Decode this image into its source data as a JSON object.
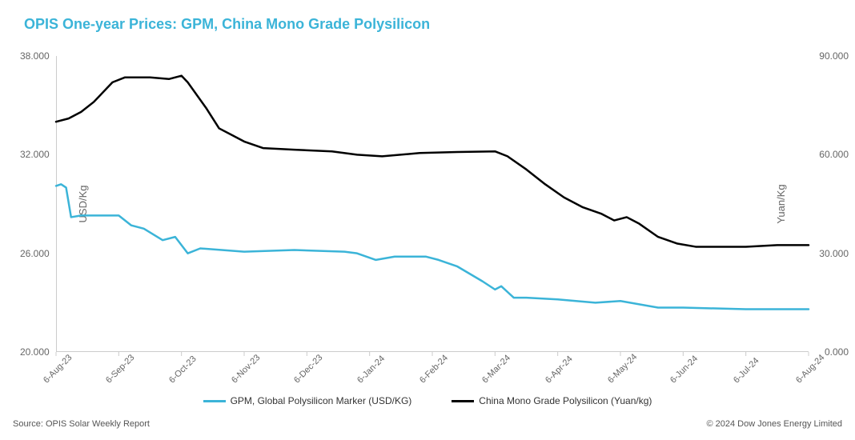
{
  "title": "OPIS One-year Prices: GPM, China Mono Grade Polysilicon",
  "title_color": "#3bb4d8",
  "source": "Source: OPIS Solar Weekly Report",
  "copyright": "© 2024 Dow Jones Energy Limited",
  "chart": {
    "type": "line",
    "background_color": "#ffffff",
    "y_left": {
      "label": "USD/Kg",
      "min": 20.0,
      "max": 38.0,
      "ticks": [
        20.0,
        26.0,
        32.0,
        38.0
      ],
      "tick_labels": [
        "20.000",
        "26.000",
        "32.000",
        "38.000"
      ]
    },
    "y_right": {
      "label": "Yuan/Kg",
      "min": 0.0,
      "max": 90.0,
      "ticks": [
        0.0,
        30.0,
        60.0,
        90.0
      ],
      "tick_labels": [
        "0.000",
        "30.000",
        "60.000",
        "90.000"
      ]
    },
    "x": {
      "labels": [
        "6-Aug-23",
        "6-Sep-23",
        "6-Oct-23",
        "6-Nov-23",
        "6-Dec-23",
        "6-Jan-24",
        "6-Feb-24",
        "6-Mar-24",
        "6-Apr-24",
        "6-May-24",
        "6-Jun-24",
        "6-Jul-24",
        "6-Aug-24"
      ]
    },
    "series": [
      {
        "name": "GPM, Global Polysilicon Marker (USD/KG)",
        "axis": "left",
        "color": "#3bb4d8",
        "line_width": 2.5,
        "data": [
          {
            "x": 0.0,
            "y": 30.1
          },
          {
            "x": 0.08,
            "y": 30.2
          },
          {
            "x": 0.16,
            "y": 30.0
          },
          {
            "x": 0.24,
            "y": 28.2
          },
          {
            "x": 0.4,
            "y": 28.3
          },
          {
            "x": 0.7,
            "y": 28.3
          },
          {
            "x": 1.0,
            "y": 28.3
          },
          {
            "x": 1.2,
            "y": 27.7
          },
          {
            "x": 1.4,
            "y": 27.5
          },
          {
            "x": 1.7,
            "y": 26.8
          },
          {
            "x": 1.9,
            "y": 27.0
          },
          {
            "x": 2.1,
            "y": 26.0
          },
          {
            "x": 2.3,
            "y": 26.3
          },
          {
            "x": 3.0,
            "y": 26.1
          },
          {
            "x": 3.8,
            "y": 26.2
          },
          {
            "x": 4.6,
            "y": 26.1
          },
          {
            "x": 4.8,
            "y": 26.0
          },
          {
            "x": 5.1,
            "y": 25.6
          },
          {
            "x": 5.4,
            "y": 25.8
          },
          {
            "x": 5.9,
            "y": 25.8
          },
          {
            "x": 6.1,
            "y": 25.6
          },
          {
            "x": 6.4,
            "y": 25.2
          },
          {
            "x": 6.8,
            "y": 24.3
          },
          {
            "x": 7.0,
            "y": 23.8
          },
          {
            "x": 7.1,
            "y": 24.0
          },
          {
            "x": 7.3,
            "y": 23.3
          },
          {
            "x": 7.5,
            "y": 23.3
          },
          {
            "x": 8.0,
            "y": 23.2
          },
          {
            "x": 8.6,
            "y": 23.0
          },
          {
            "x": 9.0,
            "y": 23.1
          },
          {
            "x": 9.6,
            "y": 22.7
          },
          {
            "x": 10.0,
            "y": 22.7
          },
          {
            "x": 11.0,
            "y": 22.6
          },
          {
            "x": 12.0,
            "y": 22.6
          }
        ]
      },
      {
        "name": "China Mono Grade Polysilicon (Yuan/kg)",
        "axis": "right",
        "color": "#000000",
        "line_width": 2.5,
        "data": [
          {
            "x": 0.0,
            "y": 70.0
          },
          {
            "x": 0.2,
            "y": 71.0
          },
          {
            "x": 0.4,
            "y": 73.0
          },
          {
            "x": 0.6,
            "y": 76.0
          },
          {
            "x": 0.9,
            "y": 82.0
          },
          {
            "x": 1.1,
            "y": 83.5
          },
          {
            "x": 1.5,
            "y": 83.5
          },
          {
            "x": 1.8,
            "y": 83.0
          },
          {
            "x": 2.0,
            "y": 84.0
          },
          {
            "x": 2.1,
            "y": 82.0
          },
          {
            "x": 2.4,
            "y": 74.0
          },
          {
            "x": 2.6,
            "y": 68.0
          },
          {
            "x": 2.8,
            "y": 66.0
          },
          {
            "x": 3.0,
            "y": 64.0
          },
          {
            "x": 3.3,
            "y": 62.0
          },
          {
            "x": 3.8,
            "y": 61.5
          },
          {
            "x": 4.4,
            "y": 61.0
          },
          {
            "x": 4.8,
            "y": 60.0
          },
          {
            "x": 5.2,
            "y": 59.5
          },
          {
            "x": 5.8,
            "y": 60.5
          },
          {
            "x": 6.4,
            "y": 60.8
          },
          {
            "x": 7.0,
            "y": 61.0
          },
          {
            "x": 7.2,
            "y": 59.5
          },
          {
            "x": 7.5,
            "y": 55.5
          },
          {
            "x": 7.8,
            "y": 51.0
          },
          {
            "x": 8.1,
            "y": 47.0
          },
          {
            "x": 8.4,
            "y": 44.0
          },
          {
            "x": 8.7,
            "y": 42.0
          },
          {
            "x": 8.9,
            "y": 40.0
          },
          {
            "x": 9.1,
            "y": 41.0
          },
          {
            "x": 9.3,
            "y": 39.0
          },
          {
            "x": 9.6,
            "y": 35.0
          },
          {
            "x": 9.9,
            "y": 33.0
          },
          {
            "x": 10.2,
            "y": 32.0
          },
          {
            "x": 11.0,
            "y": 32.0
          },
          {
            "x": 11.5,
            "y": 32.5
          },
          {
            "x": 12.0,
            "y": 32.5
          }
        ]
      }
    ],
    "legend": {
      "position": "bottom"
    },
    "axis_label_fontsize": 13,
    "tick_fontsize": 12,
    "axis_color": "#cccccc",
    "tick_color": "#666666"
  }
}
